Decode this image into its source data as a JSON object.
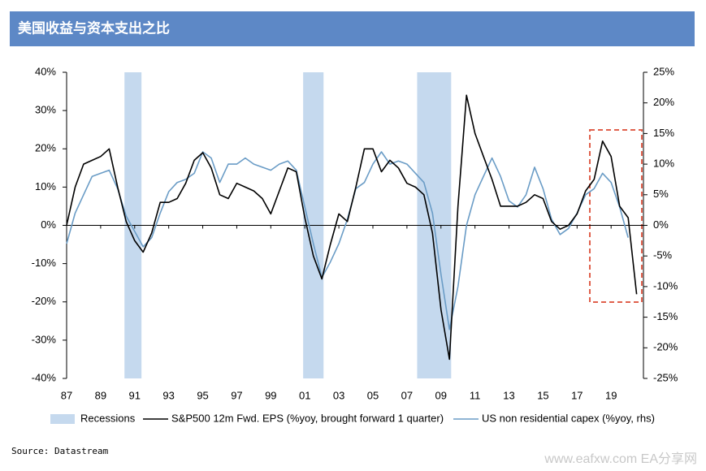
{
  "title": "美国收益与资本支出之比",
  "source": "Source: Datastream",
  "watermark": "www.eafxw.com   EA分享网",
  "chart_data": {
    "type": "line",
    "x": [
      1987,
      1987.5,
      1988,
      1988.5,
      1989,
      1989.5,
      1990,
      1990.5,
      1991,
      1991.5,
      1992,
      1992.5,
      1993,
      1993.5,
      1994,
      1994.5,
      1995,
      1995.5,
      1996,
      1996.5,
      1997,
      1997.5,
      1998,
      1998.5,
      1999,
      1999.5,
      2000,
      2000.5,
      2001,
      2001.5,
      2002,
      2002.5,
      2003,
      2003.5,
      2004,
      2004.5,
      2005,
      2005.5,
      2006,
      2006.5,
      2007,
      2007.5,
      2008,
      2008.5,
      2009,
      2009.5,
      2010,
      2010.5,
      2011,
      2011.5,
      2012,
      2012.5,
      2013,
      2013.5,
      2014,
      2014.5,
      2015,
      2015.5,
      2016,
      2016.5,
      2017,
      2017.5,
      2018,
      2018.5,
      2019,
      2019.5,
      2020,
      2020.5
    ],
    "series": [
      {
        "name": "S&P500 12m Fwd. EPS (%yoy, brought forward 1 quarter)",
        "color": "#000000",
        "values": [
          0,
          10,
          16,
          17,
          18,
          20,
          10,
          1,
          -4,
          -7,
          -2,
          6,
          6,
          7,
          11,
          17,
          19,
          15,
          8,
          7,
          11,
          10,
          9,
          7,
          3,
          9,
          15,
          14,
          2,
          -8,
          -14,
          -5,
          3,
          1,
          10,
          20,
          20,
          14,
          17,
          15,
          11,
          10,
          8,
          -2,
          -22,
          -35,
          5,
          34,
          24,
          18,
          12,
          5,
          5,
          5,
          6,
          8,
          7,
          1,
          -1,
          0,
          3,
          9,
          12,
          22,
          18,
          5,
          2,
          -18
        ]
      },
      {
        "name": "US non residential capex (%yoy, rhs)",
        "color": "#6a9cc6",
        "axis": "y2",
        "values": [
          -3,
          2,
          5,
          8,
          8.5,
          9,
          6,
          1.5,
          -1,
          -3.5,
          -2,
          2,
          5.5,
          7,
          7.5,
          8.5,
          12,
          11,
          7,
          10,
          10,
          11,
          10,
          9.5,
          9,
          10,
          10.5,
          9,
          3,
          -3,
          -8.5,
          -6,
          -3,
          1,
          6,
          7,
          10,
          12,
          10,
          10.5,
          10,
          8.5,
          7,
          2,
          -8,
          -17,
          -10,
          0,
          5,
          8,
          11,
          8,
          4,
          3,
          5,
          9.5,
          6,
          1,
          -1.5,
          -0.5,
          2,
          5,
          6,
          8.5,
          7,
          3,
          -2,
          null
        ]
      }
    ],
    "recessions": {
      "name": "Recessions",
      "color": "#c5d9ee",
      "periods": [
        [
          1990.4,
          1991.4
        ],
        [
          2000.9,
          2002.1
        ],
        [
          2007.6,
          2009.6
        ]
      ]
    },
    "xlim": [
      1987,
      2020.9
    ],
    "xticks": [
      {
        "value": 1987,
        "label": "87"
      },
      {
        "value": 1989,
        "label": "89"
      },
      {
        "value": 1991,
        "label": "91"
      },
      {
        "value": 1993,
        "label": "93"
      },
      {
        "value": 1995,
        "label": "95"
      },
      {
        "value": 1997,
        "label": "97"
      },
      {
        "value": 1999,
        "label": "99"
      },
      {
        "value": 2001,
        "label": "01"
      },
      {
        "value": 2003,
        "label": "03"
      },
      {
        "value": 2005,
        "label": "05"
      },
      {
        "value": 2007,
        "label": "07"
      },
      {
        "value": 2009,
        "label": "09"
      },
      {
        "value": 2011,
        "label": "11"
      },
      {
        "value": 2013,
        "label": "13"
      },
      {
        "value": 2015,
        "label": "15"
      },
      {
        "value": 2017,
        "label": "17"
      },
      {
        "value": 2019,
        "label": "19"
      }
    ],
    "ylim": [
      -40,
      40
    ],
    "yticks": [
      {
        "value": 40,
        "label": "40%"
      },
      {
        "value": 30,
        "label": "30%"
      },
      {
        "value": 20,
        "label": "20%"
      },
      {
        "value": 10,
        "label": "10%"
      },
      {
        "value": 0,
        "label": "0%"
      },
      {
        "value": -10,
        "label": "-10%"
      },
      {
        "value": -20,
        "label": "-20%"
      },
      {
        "value": -30,
        "label": "-30%"
      },
      {
        "value": -40,
        "label": "-40%"
      }
    ],
    "y2lim": [
      -25,
      25
    ],
    "y2ticks": [
      {
        "value": 25,
        "label": "25%"
      },
      {
        "value": 20,
        "label": "20%"
      },
      {
        "value": 15,
        "label": "15%"
      },
      {
        "value": 10,
        "label": "10%"
      },
      {
        "value": 5,
        "label": "5%"
      },
      {
        "value": 0,
        "label": "0%"
      },
      {
        "value": -5,
        "label": "-5%"
      },
      {
        "value": -10,
        "label": "-10%"
      },
      {
        "value": -15,
        "label": "-15%"
      },
      {
        "value": -20,
        "label": "-20%"
      },
      {
        "value": -25,
        "label": "-25%"
      }
    ]
  }
}
